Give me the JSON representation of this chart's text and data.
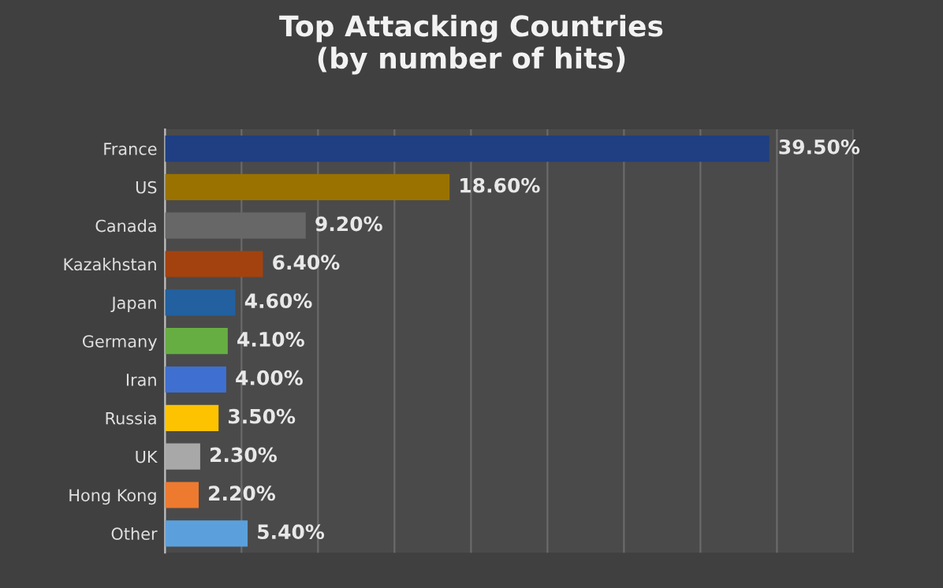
{
  "chart_data": {
    "type": "bar",
    "orientation": "horizontal",
    "title": "Top Attacking Countries\n(by number of hits)",
    "categories": [
      "France",
      "US",
      "Canada",
      "Kazakhstan",
      "Japan",
      "Germany",
      "Iran",
      "Russia",
      "UK",
      "Hong Kong",
      "Other"
    ],
    "values": [
      39.5,
      18.6,
      9.2,
      6.4,
      4.6,
      4.1,
      4.0,
      3.5,
      2.3,
      2.2,
      5.4
    ],
    "colors": [
      "#1f3f82",
      "#9a7200",
      "#676767",
      "#a3420f",
      "#22609f",
      "#67ae42",
      "#3f6fd0",
      "#fdc300",
      "#a8a8a8",
      "#ee7a30",
      "#5ba0dc"
    ],
    "value_labels": [
      "39.50%",
      "18.60%",
      "9.20%",
      "6.40%",
      "4.60%",
      "4.10%",
      "4.00%",
      "3.50%",
      "2.30%",
      "2.20%",
      "5.40%"
    ],
    "xlim": [
      0,
      45
    ],
    "xticks": [
      {
        "value": 0,
        "label": null
      },
      {
        "value": 5,
        "label": null
      },
      {
        "value": 10,
        "label": null
      },
      {
        "value": 15,
        "label": null
      },
      {
        "value": 20,
        "label": null
      },
      {
        "value": 25,
        "label": null
      },
      {
        "value": 30,
        "label": null
      },
      {
        "value": 35,
        "label": null
      },
      {
        "value": 40,
        "label": null
      },
      {
        "value": 45,
        "label": null
      }
    ],
    "grid": "x",
    "tick_labels": "y",
    "legend": false
  }
}
